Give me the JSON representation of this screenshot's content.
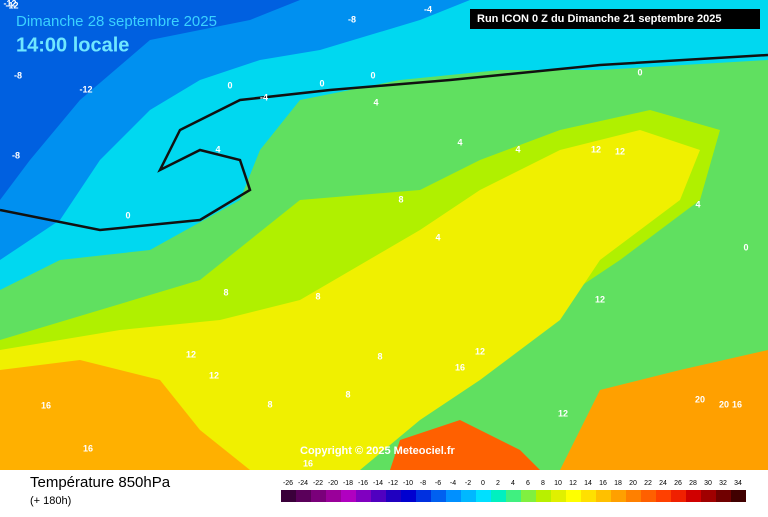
{
  "header": {
    "date": "Dimanche 28 septembre 2025",
    "time": "14:00 locale",
    "run": "Run ICON 0 Z du Dimanche 21 septembre 2025"
  },
  "copyright": "Copyright © 2025 Meteociel.fr",
  "footer": {
    "title": "Température 850hPa",
    "lead": "(+ 180h)"
  },
  "scale": {
    "labels": [
      -26,
      -24,
      -22,
      -20,
      -18,
      -16,
      -14,
      -12,
      -10,
      -8,
      -6,
      -4,
      -2,
      0,
      2,
      4,
      6,
      8,
      10,
      12,
      14,
      16,
      18,
      20,
      22,
      24,
      26,
      28,
      30,
      32,
      34
    ],
    "colors": [
      "#3a003a",
      "#5a005a",
      "#7a007a",
      "#9a009a",
      "#b000c0",
      "#8000c0",
      "#5000c0",
      "#2000c0",
      "#0000d0",
      "#0030e0",
      "#0060f0",
      "#0090ff",
      "#00b8ff",
      "#00e0ff",
      "#00f0c0",
      "#40f080",
      "#80f040",
      "#b8f000",
      "#e0f000",
      "#ffff00",
      "#ffe000",
      "#ffc000",
      "#ffa000",
      "#ff8000",
      "#ff6000",
      "#ff4000",
      "#f02000",
      "#d00000",
      "#a00000",
      "#700000",
      "#400000"
    ]
  },
  "contour_labels": [
    -12,
    -8,
    -8,
    -4,
    -12,
    -12,
    -4,
    0,
    0,
    4,
    4,
    4,
    4,
    0,
    0,
    8,
    8,
    8,
    12,
    12,
    12,
    12,
    12,
    16,
    16,
    16,
    16,
    12,
    20,
    20,
    16,
    8,
    4,
    0,
    0,
    -8,
    12,
    8,
    4,
    8
  ]
}
